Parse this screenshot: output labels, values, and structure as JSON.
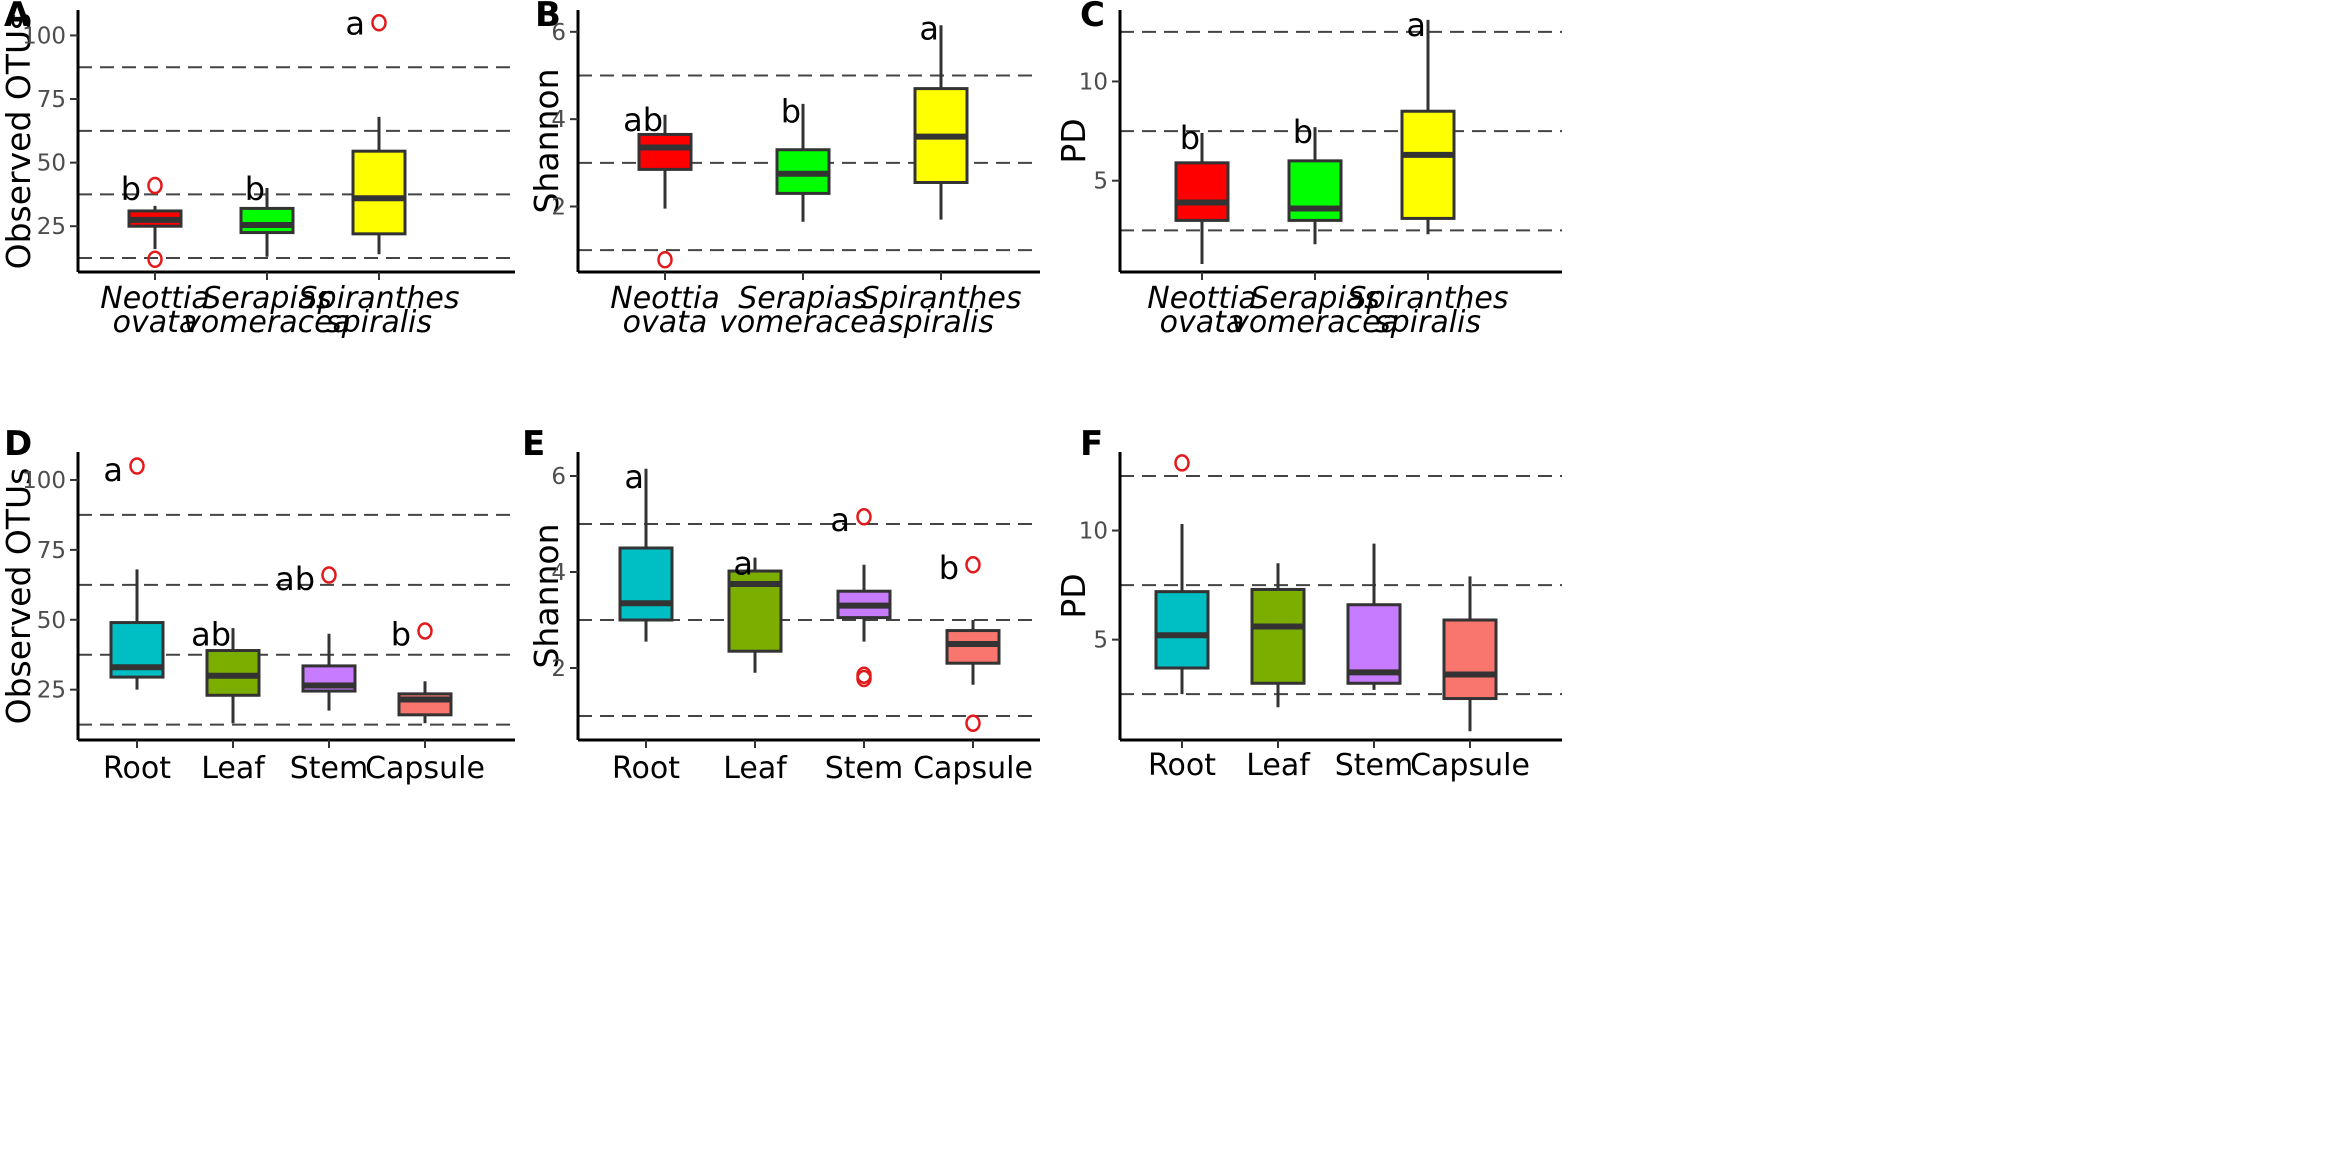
{
  "chart_data": [
    {
      "type": "box",
      "panel": "A",
      "ylabel": "Observed OTUs",
      "ylim": [
        7,
        110
      ],
      "yticks": [
        25,
        50,
        75,
        100
      ],
      "reference_lines": [
        12.5,
        37.5,
        62.5,
        87.5
      ],
      "italic_categories": true,
      "categories": [
        {
          "label": [
            "Neottia",
            "ovata"
          ],
          "color": "#ff0000",
          "q1": 25,
          "median": 27.5,
          "q3": 31,
          "whisker_low": 16,
          "whisker_high": 33,
          "outliers": [
            12,
            41
          ],
          "sig": "b",
          "sig_y": 40
        },
        {
          "label": [
            "Serapias",
            "vomeracea"
          ],
          "color": "#00ff00",
          "q1": 22.5,
          "median": 25.5,
          "q3": 32,
          "whisker_low": 13,
          "whisker_high": 40,
          "outliers": [],
          "sig": "b",
          "sig_y": 40
        },
        {
          "label": [
            "Spiranthes",
            "spiralis"
          ],
          "color": "#ffff00",
          "q1": 22,
          "median": 36,
          "q3": 54.5,
          "whisker_low": 14,
          "whisker_high": 68,
          "outliers": [
            105
          ],
          "sig": "a",
          "sig_y": 105
        }
      ]
    },
    {
      "type": "box",
      "panel": "B",
      "ylabel": "Shannon",
      "ylim": [
        0.5,
        6.5
      ],
      "yticks": [
        2,
        4,
        6
      ],
      "reference_lines": [
        1,
        3,
        5
      ],
      "italic_categories": true,
      "categories": [
        {
          "label": [
            "Neottia",
            "ovata"
          ],
          "color": "#ff0000",
          "q1": 2.85,
          "median": 3.35,
          "q3": 3.65,
          "whisker_low": 1.95,
          "whisker_high": 4.1,
          "outliers": [
            0.78
          ],
          "sig": "ab",
          "sig_y": 4.0
        },
        {
          "label": [
            "Serapias",
            "vomeracea"
          ],
          "color": "#00ff00",
          "q1": 2.3,
          "median": 2.75,
          "q3": 3.3,
          "whisker_low": 1.65,
          "whisker_high": 4.35,
          "outliers": [],
          "sig": "b",
          "sig_y": 4.2
        },
        {
          "label": [
            "Spiranthes",
            "spiralis"
          ],
          "color": "#ffff00",
          "q1": 2.55,
          "median": 3.6,
          "q3": 4.7,
          "whisker_low": 1.7,
          "whisker_high": 6.15,
          "outliers": [],
          "sig": "a",
          "sig_y": 6.1
        }
      ]
    },
    {
      "type": "box",
      "panel": "C",
      "ylabel": "PD",
      "ylim": [
        0.4,
        13.6
      ],
      "yticks": [
        5,
        10
      ],
      "reference_lines": [
        2.5,
        7.5,
        12.5
      ],
      "italic_categories": true,
      "categories": [
        {
          "label": [
            "Neottia",
            "ovata"
          ],
          "color": "#ff0000",
          "q1": 3.0,
          "median": 3.9,
          "q3": 5.9,
          "whisker_low": 0.8,
          "whisker_high": 7.4,
          "outliers": [],
          "sig": "b",
          "sig_y": 7.2
        },
        {
          "label": [
            "Serapias",
            "vomeracea"
          ],
          "color": "#00ff00",
          "q1": 3.0,
          "median": 3.6,
          "q3": 6.0,
          "whisker_low": 1.8,
          "whisker_high": 7.7,
          "outliers": [],
          "sig": "b",
          "sig_y": 7.5
        },
        {
          "label": [
            "Spiranthes",
            "spiralis"
          ],
          "color": "#ffff00",
          "q1": 3.1,
          "median": 6.3,
          "q3": 8.5,
          "whisker_low": 2.3,
          "whisker_high": 13.1,
          "outliers": [],
          "sig": "a",
          "sig_y": 12.9
        }
      ]
    },
    {
      "type": "box",
      "panel": "D",
      "ylabel": "Observed OTUs",
      "ylim": [
        7,
        110
      ],
      "yticks": [
        25,
        50,
        75,
        100
      ],
      "reference_lines": [
        12.5,
        37.5,
        62.5,
        87.5
      ],
      "italic_categories": false,
      "categories": [
        {
          "label": [
            "Root"
          ],
          "color": "#00bfc4",
          "q1": 29.5,
          "median": 33,
          "q3": 49,
          "whisker_low": 25,
          "whisker_high": 68,
          "outliers": [
            105
          ],
          "sig": "a",
          "sig_y": 104
        },
        {
          "label": [
            "Leaf"
          ],
          "color": "#7cae00",
          "q1": 23,
          "median": 30,
          "q3": 39,
          "whisker_low": 13,
          "whisker_high": 47,
          "outliers": [],
          "sig": "ab",
          "sig_y": 45
        },
        {
          "label": [
            "Stem"
          ],
          "color": "#c77cff",
          "q1": 24.5,
          "median": 26.5,
          "q3": 33.5,
          "whisker_low": 17.5,
          "whisker_high": 45,
          "outliers": [
            66
          ],
          "sig": "ab",
          "sig_y": 65
        },
        {
          "label": [
            "Capsule"
          ],
          "color": "#f8766d",
          "q1": 16,
          "median": 21.5,
          "q3": 23.5,
          "whisker_low": 13,
          "whisker_high": 28,
          "outliers": [
            46
          ],
          "sig": "b",
          "sig_y": 45
        }
      ]
    },
    {
      "type": "box",
      "panel": "E",
      "ylabel": "Shannon",
      "ylim": [
        0.5,
        6.5
      ],
      "yticks": [
        2,
        4,
        6
      ],
      "reference_lines": [
        1,
        3,
        5
      ],
      "italic_categories": false,
      "categories": [
        {
          "label": [
            "Root"
          ],
          "color": "#00bfc4",
          "q1": 3.0,
          "median": 3.35,
          "q3": 4.5,
          "whisker_low": 2.55,
          "whisker_high": 6.15,
          "outliers": [],
          "sig": "a",
          "sig_y": 6.0
        },
        {
          "label": [
            "Leaf"
          ],
          "color": "#7cae00",
          "q1": 2.35,
          "median": 3.75,
          "q3": 4.02,
          "whisker_low": 1.9,
          "whisker_high": 4.3,
          "outliers": [],
          "sig": "a",
          "sig_y": 4.2
        },
        {
          "label": [
            "Stem"
          ],
          "color": "#c77cff",
          "q1": 3.05,
          "median": 3.3,
          "q3": 3.6,
          "whisker_low": 2.55,
          "whisker_high": 4.15,
          "outliers": [
            5.15,
            1.85,
            1.78
          ],
          "sig": "a",
          "sig_y": 5.1
        },
        {
          "label": [
            "Capsule"
          ],
          "color": "#f8766d",
          "q1": 2.1,
          "median": 2.5,
          "q3": 2.78,
          "whisker_low": 1.65,
          "whisker_high": 3.0,
          "outliers": [
            4.15,
            0.85
          ],
          "sig": "b",
          "sig_y": 4.1
        }
      ]
    },
    {
      "type": "box",
      "panel": "F",
      "ylabel": "PD",
      "ylim": [
        0.4,
        13.6
      ],
      "yticks": [
        5,
        10
      ],
      "reference_lines": [
        2.5,
        7.5,
        12.5
      ],
      "italic_categories": false,
      "categories": [
        {
          "label": [
            "Root"
          ],
          "color": "#00bfc4",
          "q1": 3.7,
          "median": 5.2,
          "q3": 7.2,
          "whisker_low": 2.5,
          "whisker_high": 10.3,
          "outliers": [
            13.1
          ],
          "sig": "",
          "sig_y": 0
        },
        {
          "label": [
            "Leaf"
          ],
          "color": "#7cae00",
          "q1": 3.0,
          "median": 5.6,
          "q3": 7.3,
          "whisker_low": 1.9,
          "whisker_high": 8.5,
          "outliers": [],
          "sig": "",
          "sig_y": 0
        },
        {
          "label": [
            "Stem"
          ],
          "color": "#c77cff",
          "q1": 3.0,
          "median": 3.5,
          "q3": 6.6,
          "whisker_low": 2.7,
          "whisker_high": 9.4,
          "outliers": [],
          "sig": "",
          "sig_y": 0
        },
        {
          "label": [
            "Capsule"
          ],
          "color": "#f8766d",
          "q1": 2.3,
          "median": 3.4,
          "q3": 5.9,
          "whisker_low": 0.8,
          "whisker_high": 7.9,
          "outliers": [],
          "sig": "",
          "sig_y": 0
        }
      ]
    }
  ]
}
